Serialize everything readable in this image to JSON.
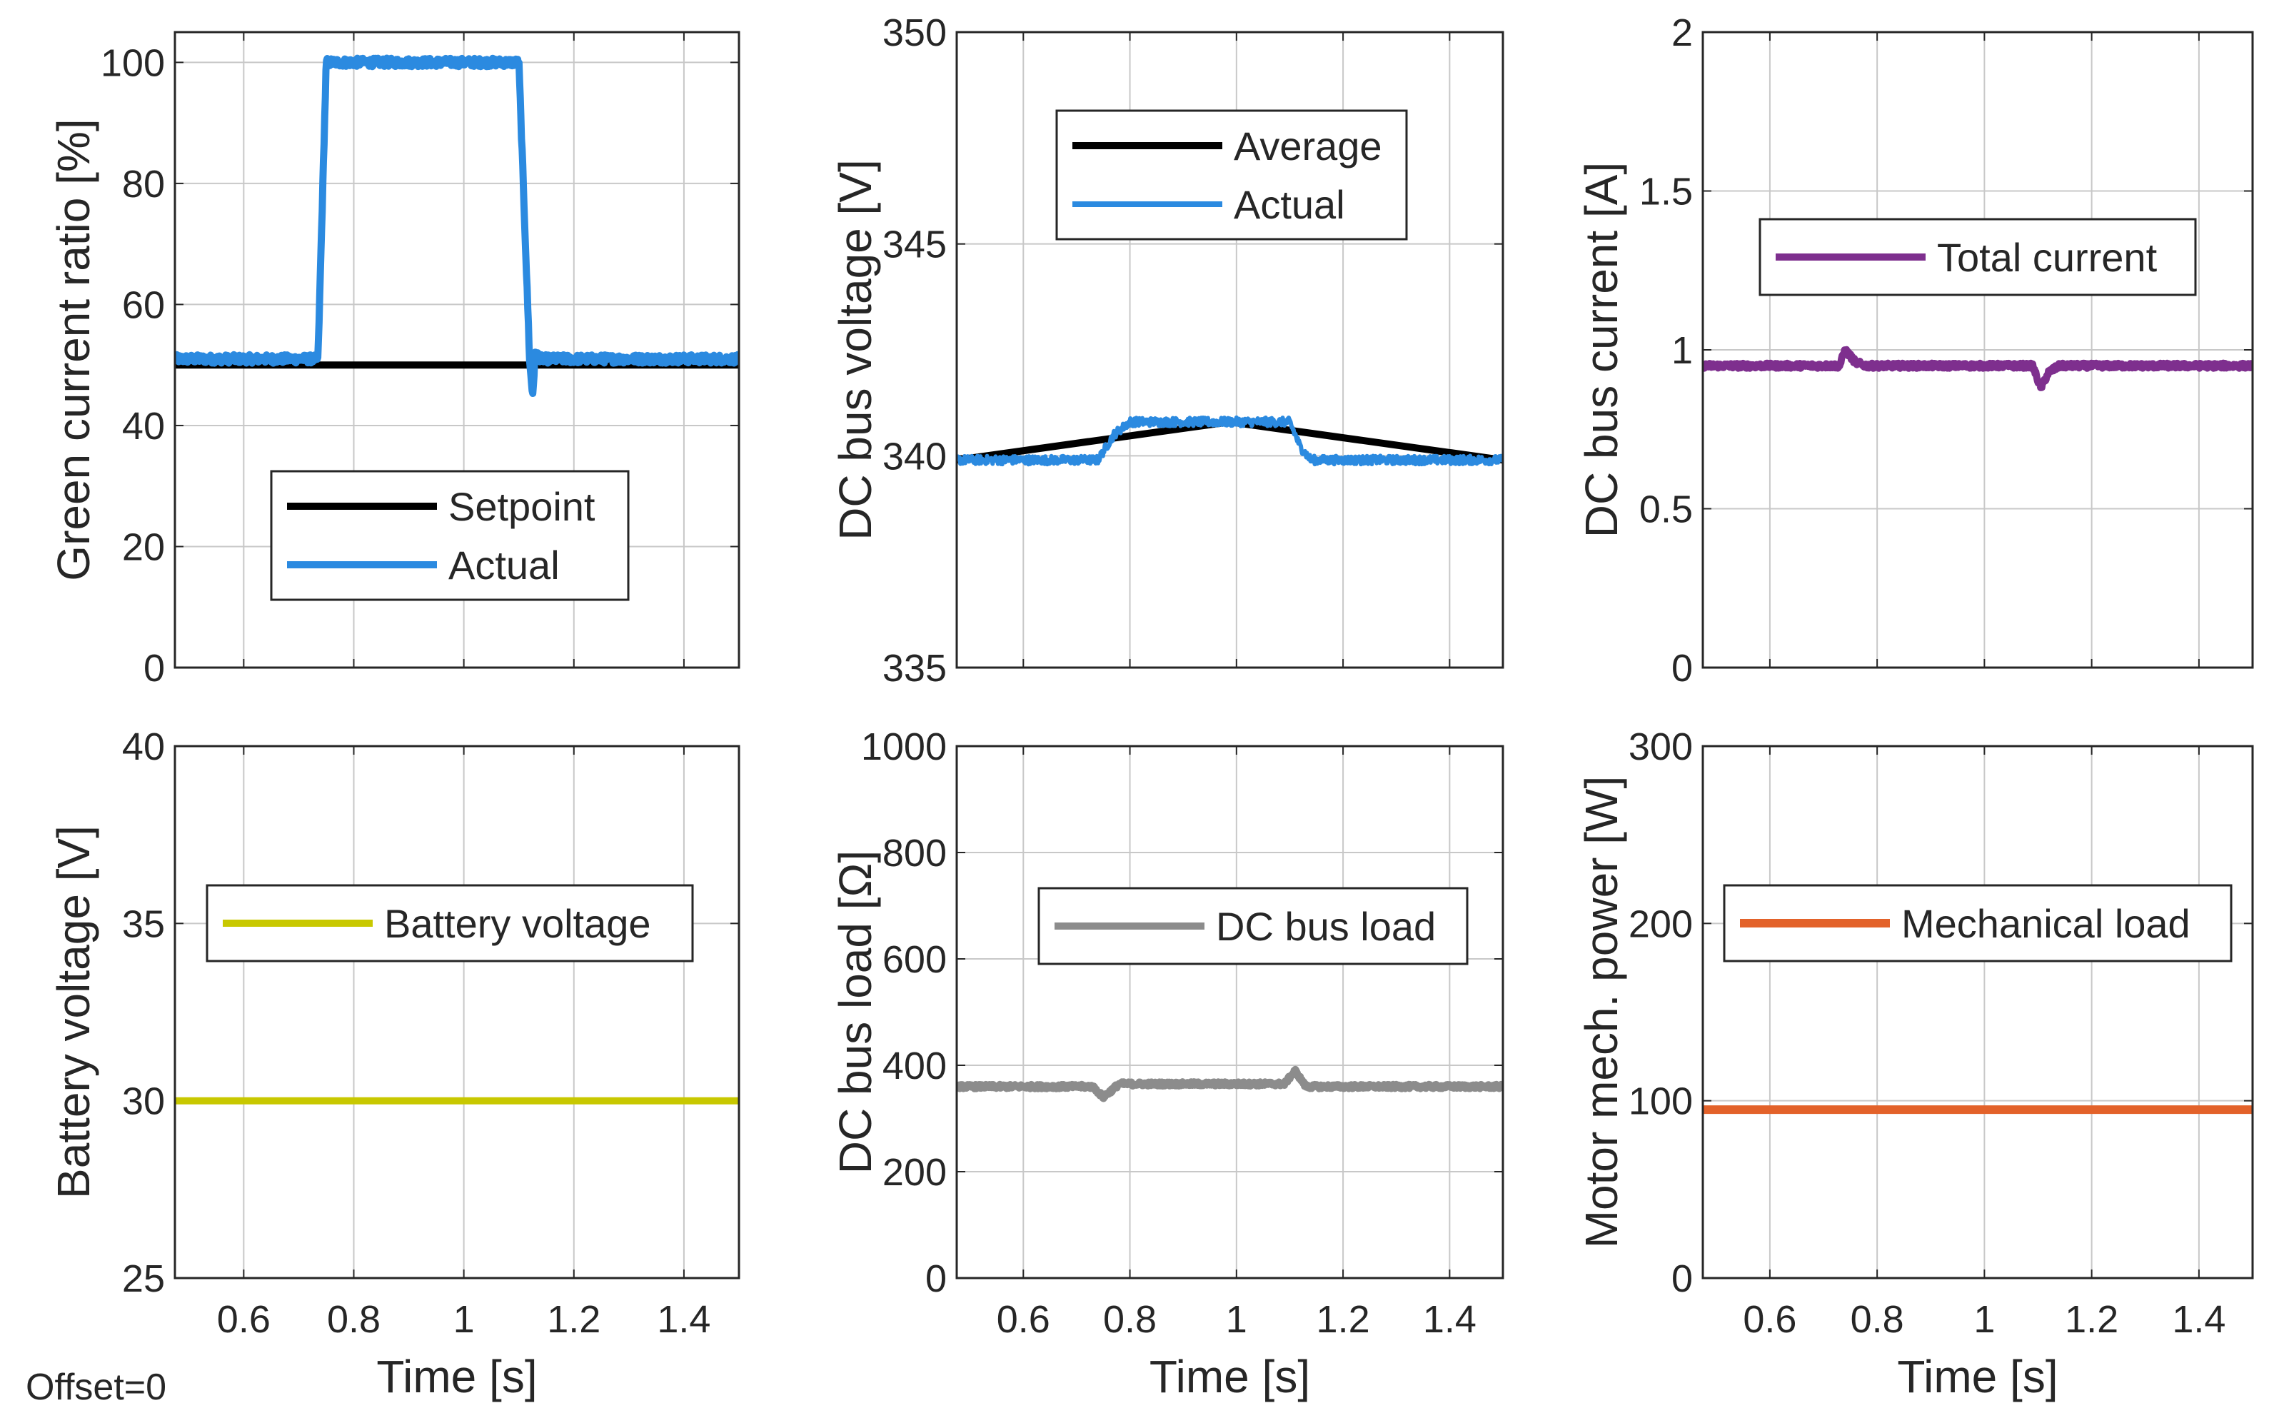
{
  "figure": {
    "offset_label": "Offset=0"
  },
  "chart_data": [
    {
      "id": "green-current",
      "type": "line",
      "ylabel": "Green current ratio [%]",
      "xlabel": "",
      "xlim": [
        0.475,
        1.5
      ],
      "ylim": [
        0,
        105
      ],
      "xticks": [
        0.6,
        0.8,
        1,
        1.2,
        1.4
      ],
      "xtick_labels": [],
      "yticks": [
        0,
        20,
        40,
        60,
        80,
        100
      ],
      "ytick_labels": [
        "0",
        "20",
        "40",
        "60",
        "80",
        "100"
      ],
      "grid": true,
      "legend_position": "lower-center",
      "series": [
        {
          "name": "Setpoint",
          "color": "#000000",
          "width": 10,
          "x": [
            0.475,
            1.5
          ],
          "y": [
            50,
            50
          ]
        },
        {
          "name": "Actual",
          "color": "#2b8ae0",
          "width": 10,
          "noise": 0.7,
          "x": [
            0.475,
            0.735,
            0.75,
            1.1,
            1.12,
            1.125,
            1.13,
            1.14,
            1.5
          ],
          "y": [
            51,
            51,
            100,
            100,
            50,
            45,
            52,
            51,
            51
          ]
        }
      ]
    },
    {
      "id": "dc-bus-voltage",
      "type": "line",
      "ylabel": "DC bus voltage [V]",
      "xlabel": "",
      "xlim": [
        0.475,
        1.5
      ],
      "ylim": [
        335,
        350
      ],
      "xticks": [
        0.6,
        0.8,
        1,
        1.2,
        1.4
      ],
      "xtick_labels": [],
      "yticks": [
        335,
        340,
        345,
        350
      ],
      "ytick_labels": [
        "335",
        "340",
        "345",
        "350"
      ],
      "grid": true,
      "legend_position": "top-center",
      "series": [
        {
          "name": "Average",
          "color": "#000000",
          "width": 10,
          "x": [
            0.475,
            0.74,
            0.77,
            0.8,
            1.1,
            1.12,
            1.14,
            1.5
          ],
          "y": [
            339.9,
            339.9,
            340.5,
            340.8,
            340.8,
            340.2,
            339.9,
            339.9
          ]
        },
        {
          "name": "Actual",
          "color": "#2b8ae0",
          "width": 6,
          "noise": 0.1,
          "x": [
            0.475,
            0.74,
            0.77,
            0.8,
            1.1,
            1.12,
            1.14,
            1.5
          ],
          "y": [
            339.9,
            339.9,
            340.5,
            340.8,
            340.8,
            340.2,
            339.9,
            339.9
          ]
        }
      ]
    },
    {
      "id": "dc-bus-current",
      "type": "line",
      "ylabel": "DC bus current [A]",
      "xlabel": "",
      "xlim": [
        0.475,
        1.5
      ],
      "ylim": [
        0,
        2
      ],
      "xticks": [
        0.6,
        0.8,
        1,
        1.2,
        1.4
      ],
      "xtick_labels": [],
      "yticks": [
        0,
        0.5,
        1,
        1.5,
        2
      ],
      "ytick_labels": [
        "0",
        "0.5",
        "1",
        "1.5",
        "2"
      ],
      "grid": true,
      "legend_position": "top-center",
      "series": [
        {
          "name": "Total current",
          "color": "#7e2f8e",
          "width": 10,
          "noise": 0.008,
          "x": [
            0.475,
            0.73,
            0.74,
            0.76,
            0.78,
            1.09,
            1.105,
            1.12,
            1.14,
            1.5
          ],
          "y": [
            0.95,
            0.95,
            1.0,
            0.96,
            0.95,
            0.95,
            0.88,
            0.93,
            0.95,
            0.95
          ]
        }
      ]
    },
    {
      "id": "battery-voltage",
      "type": "line",
      "ylabel": "Battery voltage [V]",
      "xlabel": "Time [s]",
      "xlim": [
        0.475,
        1.5
      ],
      "ylim": [
        25,
        40
      ],
      "xticks": [
        0.6,
        0.8,
        1,
        1.2,
        1.4
      ],
      "xtick_labels": [
        "0.6",
        "0.8",
        "1",
        "1.2",
        "1.4"
      ],
      "yticks": [
        25,
        30,
        35,
        40
      ],
      "ytick_labels": [
        "25",
        "30",
        "35",
        "40"
      ],
      "grid": true,
      "legend_position": "middle-center",
      "series": [
        {
          "name": "Battery voltage",
          "color": "#c8c800",
          "width": 10,
          "x": [
            0.475,
            1.5
          ],
          "y": [
            30,
            30
          ]
        }
      ]
    },
    {
      "id": "dc-bus-load",
      "type": "line",
      "ylabel": "DC bus load [Ω]",
      "xlabel": "Time [s]",
      "xlim": [
        0.475,
        1.5
      ],
      "ylim": [
        0,
        1000
      ],
      "xticks": [
        0.6,
        0.8,
        1,
        1.2,
        1.4
      ],
      "xtick_labels": [
        "0.6",
        "0.8",
        "1",
        "1.2",
        "1.4"
      ],
      "yticks": [
        0,
        200,
        400,
        600,
        800,
        1000
      ],
      "ytick_labels": [
        "0",
        "200",
        "400",
        "600",
        "800",
        "1000"
      ],
      "grid": true,
      "legend_position": "middle-center",
      "series": [
        {
          "name": "DC bus load",
          "color": "#8c8c8c",
          "width": 10,
          "noise": 4,
          "x": [
            0.475,
            0.73,
            0.75,
            0.78,
            1.09,
            1.11,
            1.13,
            1.5
          ],
          "y": [
            360,
            360,
            340,
            365,
            365,
            390,
            360,
            360
          ]
        }
      ]
    },
    {
      "id": "motor-power",
      "type": "line",
      "ylabel": "Motor mech. power [W]",
      "xlabel": "Time [s]",
      "xlim": [
        0.475,
        1.5
      ],
      "ylim": [
        0,
        300
      ],
      "xticks": [
        0.6,
        0.8,
        1,
        1.2,
        1.4
      ],
      "xtick_labels": [
        "0.6",
        "0.8",
        "1",
        "1.2",
        "1.4"
      ],
      "yticks": [
        0,
        100,
        200,
        300
      ],
      "ytick_labels": [
        "0",
        "100",
        "200",
        "300"
      ],
      "grid": true,
      "legend_position": "middle-center",
      "series": [
        {
          "name": "Mechanical load",
          "color": "#e3622a",
          "width": 12,
          "x": [
            0.475,
            1.5
          ],
          "y": [
            95,
            95
          ]
        }
      ]
    }
  ]
}
